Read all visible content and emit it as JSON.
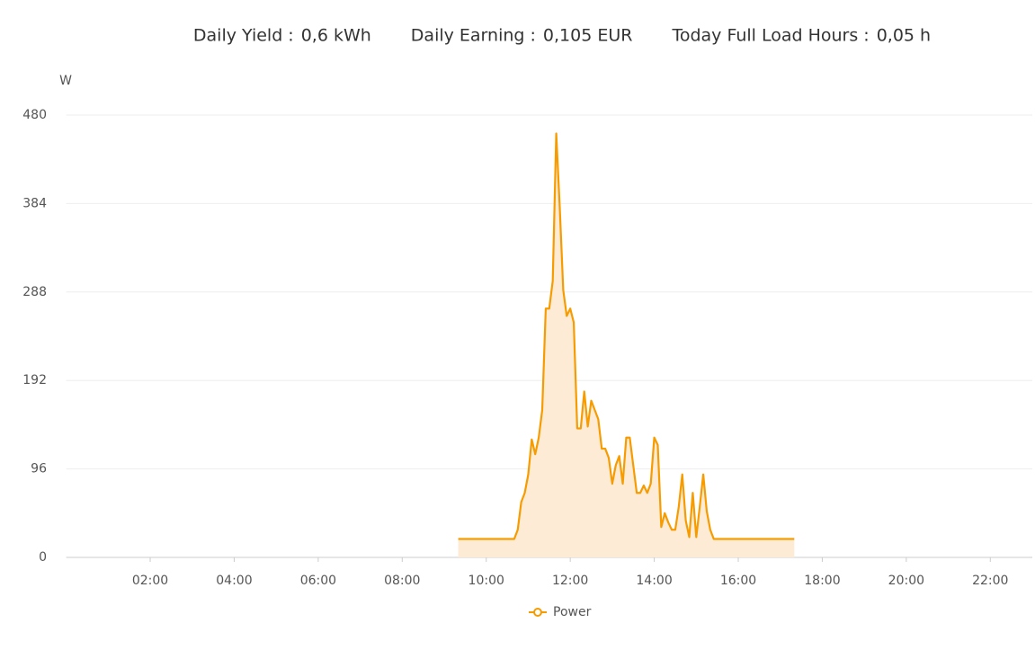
{
  "header": {
    "items": [
      {
        "label": "Daily Yield :",
        "value": "0,6 kWh"
      },
      {
        "label": "Daily Earning :",
        "value": "0,105 EUR"
      },
      {
        "label": "Today Full Load Hours :",
        "value": "0,05 h"
      }
    ]
  },
  "chart_data": {
    "type": "area",
    "y_label": "W",
    "x": [
      "09:20",
      "10:40",
      "10:45",
      "10:50",
      "10:55",
      "11:00",
      "11:05",
      "11:10",
      "11:15",
      "11:20",
      "11:25",
      "11:30",
      "11:35",
      "11:40",
      "11:45",
      "11:50",
      "11:55",
      "12:00",
      "12:05",
      "12:10",
      "12:15",
      "12:20",
      "12:25",
      "12:30",
      "12:35",
      "12:40",
      "12:45",
      "12:50",
      "12:55",
      "13:00",
      "13:05",
      "13:10",
      "13:15",
      "13:20",
      "13:25",
      "13:30",
      "13:35",
      "13:40",
      "13:45",
      "13:50",
      "13:55",
      "14:00",
      "14:05",
      "14:10",
      "14:15",
      "14:20",
      "14:25",
      "14:30",
      "14:35",
      "14:40",
      "14:45",
      "14:50",
      "14:55",
      "15:00",
      "15:05",
      "15:10",
      "15:15",
      "15:20",
      "15:25",
      "17:20"
    ],
    "series": [
      {
        "name": "Power",
        "color": "#f79c00",
        "fill": "#fdebd6",
        "values": [
          20,
          20,
          30,
          60,
          70,
          90,
          128,
          112,
          130,
          160,
          270,
          270,
          300,
          460,
          380,
          290,
          262,
          270,
          255,
          140,
          140,
          180,
          142,
          170,
          160,
          150,
          118,
          118,
          108,
          80,
          100,
          110,
          80,
          130,
          130,
          100,
          70,
          70,
          78,
          70,
          80,
          130,
          122,
          33,
          48,
          38,
          30,
          30,
          55,
          90,
          40,
          22,
          70,
          22,
          55,
          90,
          50,
          30,
          20,
          20
        ]
      }
    ],
    "xlim": [
      "00:00",
      "23:00"
    ],
    "xticks": [
      "02:00",
      "04:00",
      "06:00",
      "08:00",
      "10:00",
      "12:00",
      "14:00",
      "16:00",
      "18:00",
      "20:00",
      "22:00"
    ],
    "ylim": [
      0,
      480
    ],
    "yticks": [
      0,
      96,
      192,
      288,
      384,
      480
    ],
    "grid": true
  }
}
